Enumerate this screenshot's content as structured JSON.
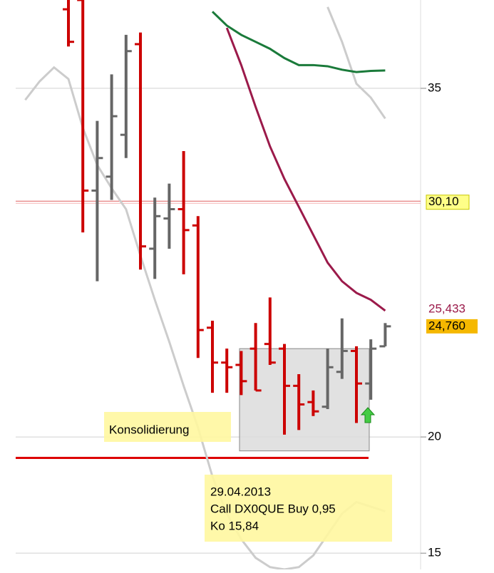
{
  "chart_data": {
    "type": "ohlc",
    "open": [
      null,
      null,
      null,
      null,
      38.4,
      38.8,
      30.6,
      31.2,
      33.0,
      36.9,
      28.1,
      29.4,
      29.8,
      29.1,
      24.7,
      23.2,
      23.1,
      23.8,
      24.0,
      23.8,
      22.2,
      21.5,
      21.3,
      22.8,
      23.7,
      22.3,
      23.9
    ],
    "high": [
      null,
      null,
      null,
      null,
      38.8,
      38.8,
      33.6,
      35.6,
      37.3,
      37.4,
      30.3,
      30.9,
      32.3,
      29.5,
      25.0,
      23.8,
      23.7,
      24.9,
      26.0,
      24.0,
      22.7,
      22.0,
      23.8,
      25.1,
      23.9,
      24.2,
      24.9
    ],
    "low": [
      null,
      null,
      null,
      null,
      36.8,
      28.8,
      26.7,
      30.2,
      32.0,
      27.2,
      26.8,
      28.1,
      27.0,
      23.4,
      21.9,
      21.9,
      21.8,
      22.0,
      23.1,
      20.1,
      20.3,
      20.9,
      21.2,
      22.5,
      20.6,
      21.6,
      23.9
    ],
    "close": [
      null,
      null,
      null,
      null,
      37.0,
      30.6,
      32.0,
      33.8,
      36.6,
      28.2,
      29.5,
      29.8,
      28.9,
      24.6,
      23.2,
      23.0,
      22.4,
      22.0,
      23.2,
      22.2,
      21.4,
      21.1,
      23.0,
      23.7,
      22.3,
      23.8,
      24.76
    ],
    "up_color": "#666666",
    "down_color": "#cc0000",
    "series": [
      {
        "color": "#cccccc",
        "values": [
          null,
          34.5,
          35.3,
          35.9,
          35.4,
          33.3,
          31.7,
          30.7,
          29.8,
          27.8,
          25.9,
          24.1,
          22.2,
          20.4,
          18.3,
          16.7,
          15.6,
          14.8,
          14.4,
          14.3,
          14.4,
          14.9,
          15.8,
          16.7,
          17.2,
          17.0,
          16.8
        ]
      },
      {
        "color": "#cccccc",
        "values": [
          null,
          null,
          null,
          null,
          null,
          null,
          null,
          null,
          null,
          null,
          null,
          null,
          null,
          null,
          null,
          null,
          null,
          null,
          null,
          null,
          null,
          null,
          38.5,
          37.0,
          35.2,
          34.6,
          33.7
        ]
      },
      {
        "color": "#1a7a3a",
        "values": [
          null,
          null,
          null,
          null,
          null,
          null,
          null,
          null,
          null,
          null,
          null,
          null,
          null,
          null,
          38.3,
          37.7,
          37.3,
          37.0,
          36.7,
          36.3,
          36.0,
          36.0,
          35.95,
          35.8,
          35.7,
          35.75,
          35.77
        ]
      },
      {
        "color": "#9b1a4a",
        "values": [
          null,
          null,
          null,
          null,
          null,
          null,
          null,
          null,
          null,
          null,
          null,
          null,
          null,
          null,
          null,
          37.6,
          36.0,
          34.2,
          32.5,
          31.1,
          29.9,
          28.7,
          27.5,
          26.7,
          26.2,
          25.9,
          25.433
        ],
        "value_labels": [
          null,
          null,
          null,
          null,
          null,
          null,
          null,
          null,
          null,
          null,
          null,
          null,
          null,
          null,
          null,
          null,
          null,
          null,
          null,
          null,
          null,
          null,
          null,
          null,
          null,
          null,
          "25,433"
        ]
      }
    ],
    "ylim": [
      14.3,
      38.8
    ],
    "yticks": [
      15,
      20,
      35
    ],
    "grid": true,
    "price_line": {
      "value": 30.1,
      "label": "30,10",
      "color": "#e06060"
    },
    "last_price": {
      "value": 24.76,
      "label": "24,760"
    },
    "support_line": {
      "value": 19.1,
      "color": "#dd0000"
    },
    "range_box": {
      "low": 19.4,
      "high": 23.8
    },
    "annotations": [
      "Konsolidierung",
      "29.04.2013",
      "Call DX0QUE Buy 0,95",
      "Ko 15,84"
    ]
  }
}
